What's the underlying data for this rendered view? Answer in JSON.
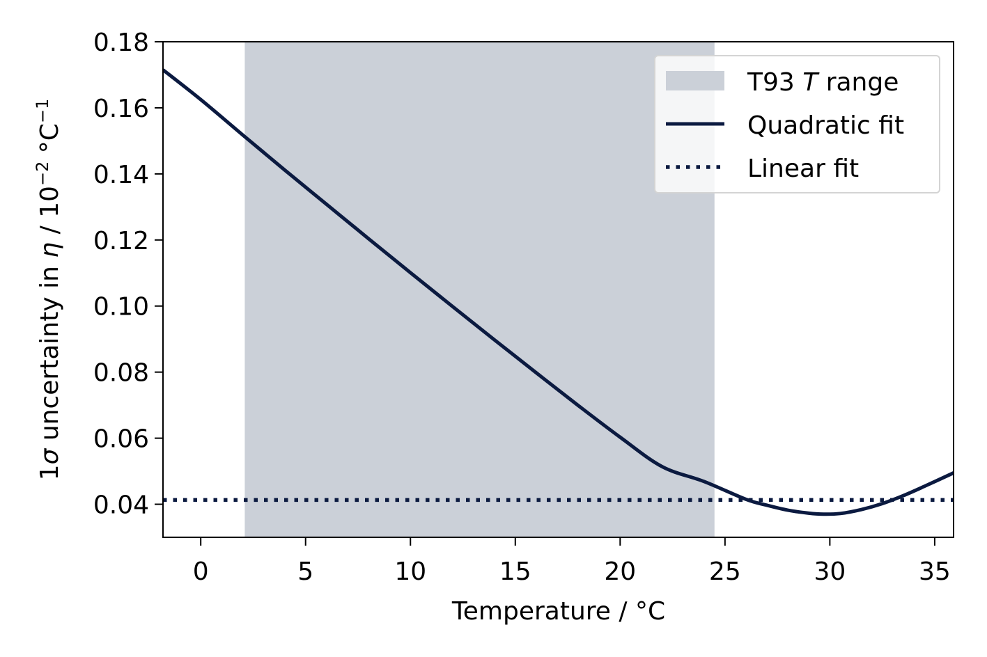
{
  "chart_data": {
    "type": "line",
    "xlabel": "Temperature / °C",
    "ylabel": {
      "prefix": "1",
      "sigma": "σ",
      "middle": " uncertainty in ",
      "eta": "η",
      "unit_base": " / 10",
      "exp1": "−2",
      "unit_deg": " °C",
      "exp2": "−1"
    },
    "xlim": [
      -1.8,
      35.9
    ],
    "ylim": [
      0.03,
      0.18
    ],
    "xticks": [
      0,
      5,
      10,
      15,
      20,
      25,
      30,
      35
    ],
    "yticks": [
      0.04,
      0.06,
      0.08,
      0.1,
      0.12,
      0.14,
      0.16,
      0.18
    ],
    "ytick_labels": [
      "0.04",
      "0.06",
      "0.08",
      "0.10",
      "0.12",
      "0.14",
      "0.16",
      "0.18"
    ],
    "grid": false,
    "legend_position": "top-right",
    "span": {
      "name_prefix": "T93 ",
      "name_italic": "T",
      "name_suffix": " range",
      "x_start": 2.1,
      "x_end": 24.5,
      "color": "#cbd0d8"
    },
    "series": [
      {
        "name": "Quadratic fit",
        "style": "solid",
        "color": "#0b1a40",
        "x": [
          -1.8,
          0,
          2,
          4,
          6,
          8,
          10,
          12,
          14,
          16,
          18,
          20,
          22,
          24,
          26,
          27,
          28,
          29,
          29.7,
          30.5,
          31.5,
          32.5,
          33.5,
          34.5,
          35.9
        ],
        "y": [
          0.1715,
          0.1625,
          0.1518,
          0.1412,
          0.1308,
          0.1204,
          0.1101,
          0.0999,
          0.0898,
          0.0798,
          0.0699,
          0.0603,
          0.0514,
          0.0469,
          0.0415,
          0.0397,
          0.0382,
          0.0373,
          0.037,
          0.0372,
          0.0384,
          0.0402,
          0.0426,
          0.0454,
          0.0495
        ]
      },
      {
        "name": "Linear fit",
        "style": "dotted",
        "color": "#0b1a40",
        "x": [
          -1.8,
          35.9
        ],
        "y": [
          0.0413,
          0.0413
        ]
      }
    ]
  }
}
